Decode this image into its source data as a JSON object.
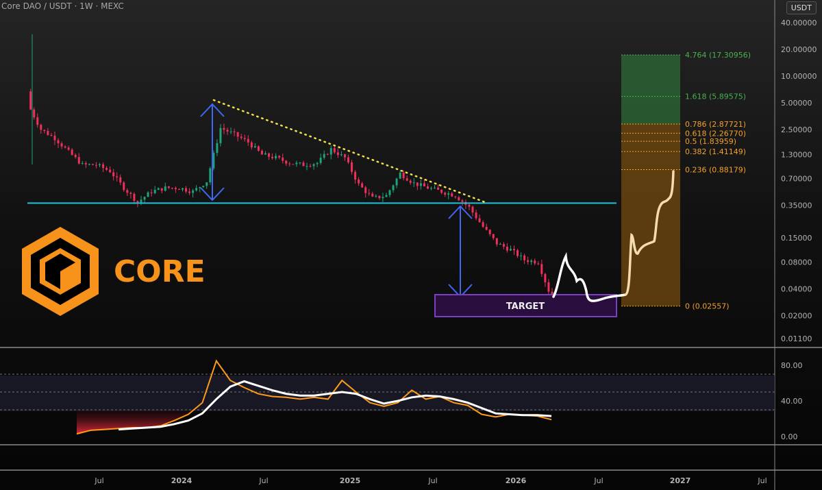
{
  "header": {
    "title": "Core DAO / USDT · 1W · MEXC",
    "currency_badge": "USDT"
  },
  "logo": {
    "text": "CORE",
    "color": "#f7931a"
  },
  "annotations": {
    "target_label": "TARGET"
  },
  "colors": {
    "up": "#1fa37a",
    "down": "#f0305c",
    "support": "#1bc4d8",
    "trendline": "#f2e04a",
    "arrow": "#3d6af0",
    "target_fill": "#2a0f3e",
    "target_border": "#7b3fc4",
    "fib_green": "#4caf50",
    "fib_orange": "#f2a12a",
    "rsi": "#ff9a1a",
    "rsi_ma": "#ffffff"
  },
  "chart_data": [
    {
      "type": "candlestick",
      "scale": "log",
      "y_ticks": [
        "40.00000",
        "20.00000",
        "10.00000",
        "5.00000",
        "2.50000",
        "1.30000",
        "0.70000",
        "0.35000",
        "0.15000",
        "0.08000",
        "0.04000",
        "0.02000",
        "0.01100"
      ],
      "x_ticks": [
        "Jul",
        "2024",
        "Jul",
        "2025",
        "Jul",
        "2026",
        "Jul",
        "2027",
        "Jul"
      ],
      "approx_monthly_close": [
        [
          "2023-02",
          5.0
        ],
        [
          "2023-03",
          2.5
        ],
        [
          "2023-04",
          2.0
        ],
        [
          "2023-05",
          1.4
        ],
        [
          "2023-06",
          1.0
        ],
        [
          "2023-07",
          1.0
        ],
        [
          "2023-08",
          0.85
        ],
        [
          "2023-09",
          0.55
        ],
        [
          "2023-10",
          0.38
        ],
        [
          "2023-11",
          0.5
        ],
        [
          "2023-12",
          0.55
        ],
        [
          "2024-01",
          0.55
        ],
        [
          "2024-02",
          0.5
        ],
        [
          "2024-03",
          0.65
        ],
        [
          "2024-04",
          2.6
        ],
        [
          "2024-05",
          2.2
        ],
        [
          "2024-06",
          1.8
        ],
        [
          "2024-07",
          1.3
        ],
        [
          "2024-08",
          1.2
        ],
        [
          "2024-09",
          1.05
        ],
        [
          "2024-10",
          1.0
        ],
        [
          "2024-11",
          1.05
        ],
        [
          "2024-12",
          1.5
        ],
        [
          "2025-01",
          1.2
        ],
        [
          "2025-02",
          0.6
        ],
        [
          "2025-03",
          0.42
        ],
        [
          "2025-04",
          0.45
        ],
        [
          "2025-05",
          0.8
        ],
        [
          "2025-06",
          0.62
        ],
        [
          "2025-07",
          0.55
        ],
        [
          "2025-08",
          0.5
        ],
        [
          "2025-09",
          0.45
        ],
        [
          "2025-10",
          0.33
        ],
        [
          "2025-11",
          0.2
        ],
        [
          "2025-12",
          0.13
        ],
        [
          "2026-01",
          0.11
        ],
        [
          "2026-02",
          0.085
        ],
        [
          "2026-03",
          0.08
        ],
        [
          "2026-04",
          0.03
        ]
      ],
      "support_level": 0.37,
      "fib_levels": [
        {
          "label": "4.764 (17.30956)",
          "price": 17.30956,
          "color": "green"
        },
        {
          "label": "1.618 (5.89575)",
          "price": 5.89575,
          "color": "green"
        },
        {
          "label": "0.786 (2.87721)",
          "price": 2.87721,
          "color": "orange"
        },
        {
          "label": "0.618 (2.26770)",
          "price": 2.2677,
          "color": "orange"
        },
        {
          "label": "0.5 (1.83959)",
          "price": 1.83959,
          "color": "orange"
        },
        {
          "label": "0.382 (1.41149)",
          "price": 1.41149,
          "color": "orange"
        },
        {
          "label": "0.236 (0.88179)",
          "price": 0.88179,
          "color": "orange"
        },
        {
          "label": "0 (0.02557)",
          "price": 0.02557,
          "color": "orange"
        }
      ]
    },
    {
      "type": "line",
      "y_ticks": [
        "80.00",
        "40.00",
        "0.00"
      ],
      "bands": [
        70,
        50,
        30
      ],
      "series": [
        {
          "key": "rsi",
          "values": [
            3,
            7,
            8,
            9,
            10,
            10,
            12,
            18,
            25,
            38,
            85,
            63,
            55,
            48,
            45,
            44,
            42,
            44,
            42,
            63,
            50,
            38,
            34,
            38,
            52,
            42,
            45,
            38,
            35,
            25,
            22,
            25,
            24,
            23,
            19
          ]
        },
        {
          "key": "rsi_ma",
          "values": [
            null,
            null,
            null,
            8,
            9,
            10,
            11,
            14,
            18,
            26,
            42,
            56,
            62,
            57,
            52,
            48,
            46,
            46,
            48,
            50,
            48,
            42,
            37,
            40,
            44,
            46,
            45,
            42,
            38,
            32,
            26,
            25,
            24,
            24,
            23
          ]
        }
      ]
    }
  ]
}
